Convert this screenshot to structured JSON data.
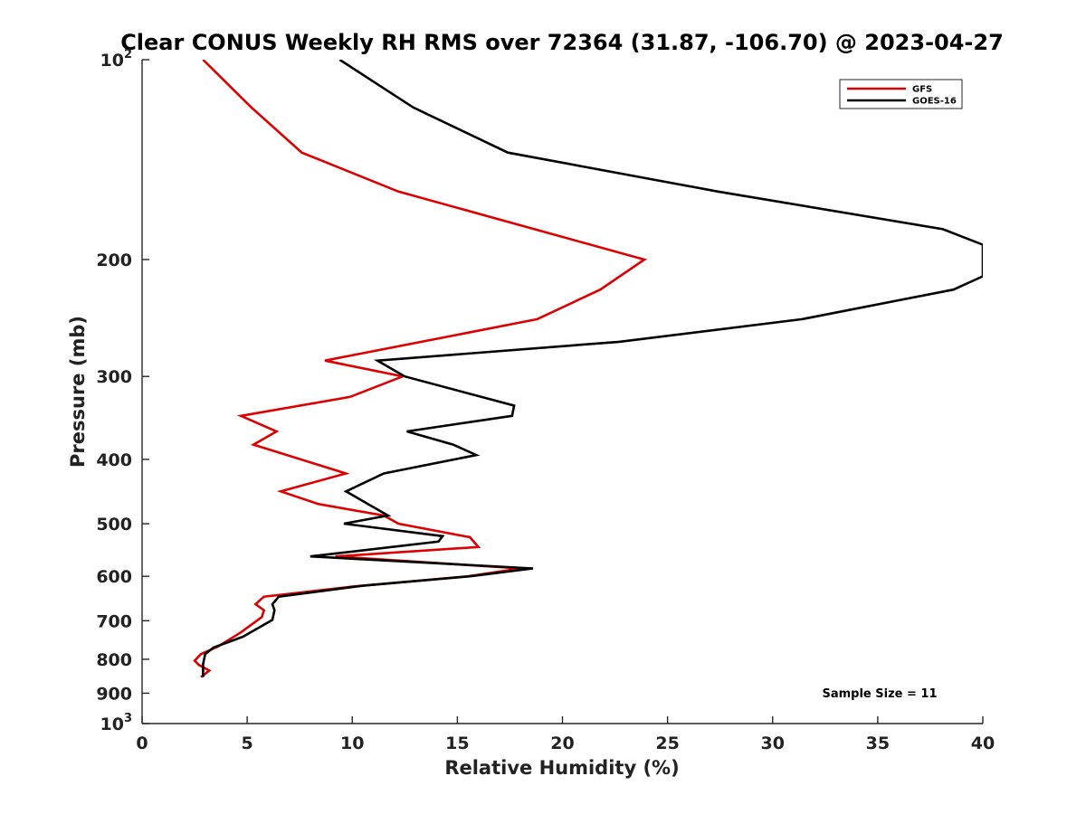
{
  "chart_data": {
    "type": "line",
    "title": "Clear CONUS Weekly RH RMS over 72364 (31.87, -106.70) @ 2023-04-27",
    "xlabel": "Relative Humidity (%)",
    "ylabel": "Pressure (mb)",
    "xlim": [
      0,
      40
    ],
    "ylim": [
      100,
      1000
    ],
    "y_scale": "log",
    "y_reversed": true,
    "grid": false,
    "legend_position": "top-right",
    "x_ticks": [
      0,
      5,
      10,
      15,
      20,
      25,
      30,
      35,
      40
    ],
    "x_tick_labels": [
      "0",
      "5",
      "10",
      "15",
      "20",
      "25",
      "30",
      "35",
      "40"
    ],
    "y_ticks": [
      100,
      200,
      300,
      400,
      500,
      600,
      700,
      800,
      900,
      1000
    ],
    "y_tick_labels": [
      {
        "base": "10",
        "sup": "2"
      },
      {
        "base": "200",
        "sup": ""
      },
      {
        "base": "300",
        "sup": ""
      },
      {
        "base": "400",
        "sup": ""
      },
      {
        "base": "500",
        "sup": ""
      },
      {
        "base": "600",
        "sup": ""
      },
      {
        "base": "700",
        "sup": ""
      },
      {
        "base": "800",
        "sup": ""
      },
      {
        "base": "900",
        "sup": ""
      },
      {
        "base": "10",
        "sup": "3"
      }
    ],
    "series": [
      {
        "name": "GFS",
        "color": "#dd0000",
        "points": [
          [
            2.9,
            100
          ],
          [
            5.2,
            118
          ],
          [
            7.6,
            138
          ],
          [
            12.2,
            158
          ],
          [
            23.9,
            200
          ],
          [
            21.8,
            222
          ],
          [
            18.8,
            246
          ],
          [
            8.7,
            284
          ],
          [
            12.4,
            300
          ],
          [
            9.9,
            322
          ],
          [
            4.7,
            344
          ],
          [
            6.4,
            363
          ],
          [
            5.3,
            380
          ],
          [
            9.7,
            420
          ],
          [
            6.6,
            447
          ],
          [
            8.4,
            467
          ],
          [
            11.5,
            486
          ],
          [
            12.2,
            500
          ],
          [
            15.6,
            524
          ],
          [
            16,
            542
          ],
          [
            9.2,
            560
          ],
          [
            18,
            584
          ],
          [
            15.5,
            600
          ],
          [
            10,
            622
          ],
          [
            5.8,
            644
          ],
          [
            5.4,
            661
          ],
          [
            5.8,
            675
          ],
          [
            5.7,
            691
          ],
          [
            4.7,
            729
          ],
          [
            3.6,
            766
          ],
          [
            2.8,
            786
          ],
          [
            2.5,
            804
          ],
          [
            2.7,
            816
          ],
          [
            3.2,
            832
          ],
          [
            2.8,
            851
          ]
        ]
      },
      {
        "name": "GOES-16",
        "color": "#000000",
        "points": [
          [
            9.4,
            100
          ],
          [
            12.9,
            118
          ],
          [
            17.4,
            138
          ],
          [
            27.4,
            158
          ],
          [
            38.1,
            180
          ],
          [
            40,
            190
          ],
          [
            40,
            212
          ],
          [
            38.6,
            222
          ],
          [
            31.4,
            246
          ],
          [
            22.7,
            266
          ],
          [
            11.2,
            284
          ],
          [
            12.5,
            300
          ],
          [
            17.7,
            332
          ],
          [
            17.6,
            344
          ],
          [
            12.6,
            363
          ],
          [
            14.8,
            380
          ],
          [
            15.9,
            394
          ],
          [
            11.5,
            420
          ],
          [
            9.7,
            447
          ],
          [
            11.1,
            474
          ],
          [
            11.7,
            486
          ],
          [
            9.6,
            500
          ],
          [
            14.3,
            522
          ],
          [
            14.1,
            532
          ],
          [
            8,
            560
          ],
          [
            18.6,
            584
          ],
          [
            15.6,
            600
          ],
          [
            10.5,
            620
          ],
          [
            6.5,
            644
          ],
          [
            6.2,
            661
          ],
          [
            6.3,
            675
          ],
          [
            6.2,
            698
          ],
          [
            4.8,
            740
          ],
          [
            3.4,
            768
          ],
          [
            3,
            786
          ],
          [
            2.9,
            814
          ],
          [
            2.9,
            832
          ],
          [
            2.9,
            851
          ]
        ]
      }
    ],
    "annotation": "Sample Size = 11"
  }
}
